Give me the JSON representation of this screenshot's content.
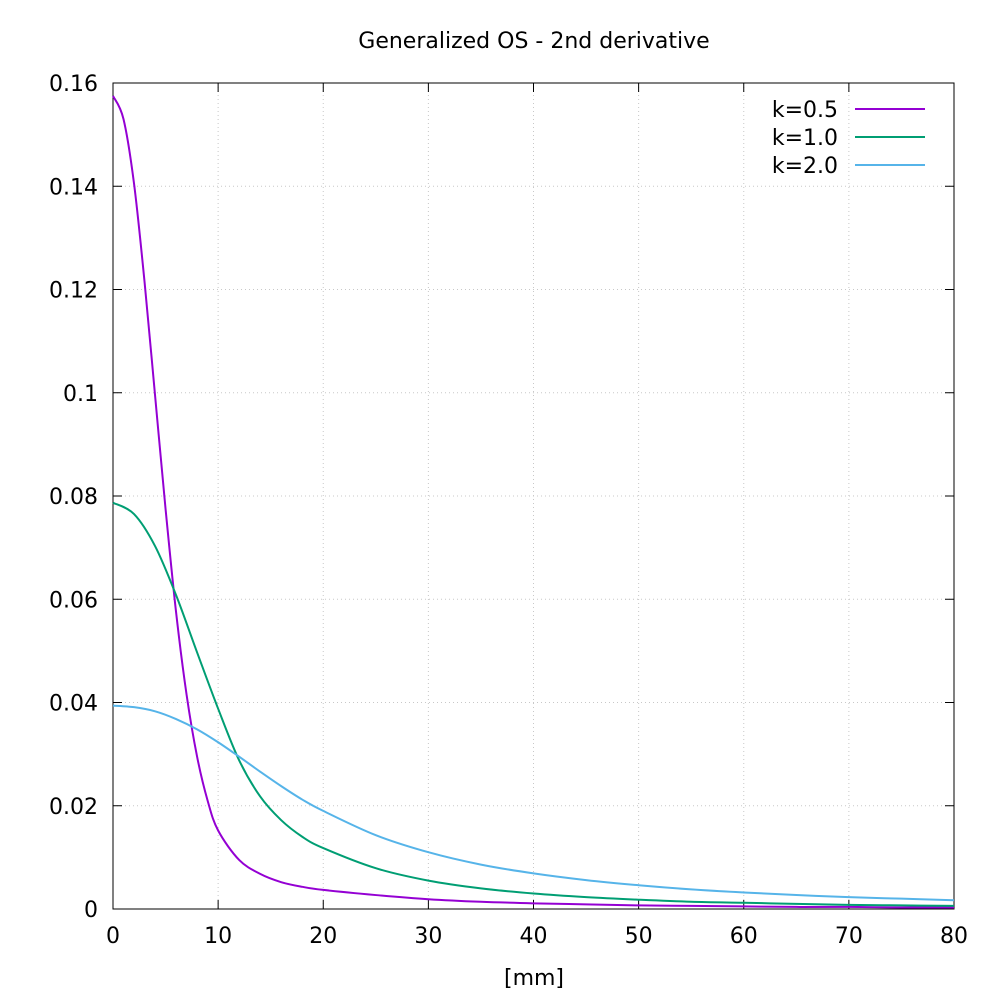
{
  "chart_data": {
    "type": "line",
    "title": "Generalized OS - 2nd derivative",
    "xlabel": "[mm]",
    "ylabel": "",
    "xlim": [
      0,
      80
    ],
    "ylim": [
      0,
      0.16
    ],
    "x_ticks": [
      0,
      10,
      20,
      30,
      40,
      50,
      60,
      70,
      80
    ],
    "x_tick_labels": [
      "0",
      "10",
      "20",
      "30",
      "40",
      "50",
      "60",
      "70",
      "80"
    ],
    "y_ticks": [
      0,
      0.02,
      0.04,
      0.06,
      0.08,
      0.1,
      0.12,
      0.14,
      0.16
    ],
    "y_tick_labels": [
      "0",
      "0.02",
      "0.04",
      "0.06",
      "0.08",
      "0.1",
      "0.12",
      "0.14",
      "0.16"
    ],
    "grid": true,
    "legend_position": "top-right",
    "series": [
      {
        "name": "k=0.5",
        "color": "#9400d3",
        "x": [
          0,
          1,
          2,
          3,
          4,
          5,
          6,
          7,
          8,
          9,
          10,
          12,
          14,
          16,
          18,
          20,
          25,
          30,
          35,
          40,
          45,
          50,
          55,
          60,
          65,
          70,
          75,
          80
        ],
        "y": [
          0.1575,
          0.153,
          0.1405,
          0.1215,
          0.0995,
          0.0775,
          0.0575,
          0.0415,
          0.0295,
          0.021,
          0.0152,
          0.0095,
          0.0068,
          0.0052,
          0.0043,
          0.0037,
          0.0027,
          0.0019,
          0.0014,
          0.0011,
          0.0009,
          0.0007,
          0.0006,
          0.0005,
          0.0004,
          0.0004,
          0.0003,
          0.0003
        ]
      },
      {
        "name": "k=1.0",
        "color": "#009e73",
        "x": [
          0,
          2,
          4,
          6,
          8,
          10,
          12,
          14,
          16,
          18,
          20,
          25,
          30,
          35,
          40,
          45,
          50,
          55,
          60,
          65,
          70,
          75,
          80
        ],
        "y": [
          0.0787,
          0.0765,
          0.0703,
          0.0608,
          0.0497,
          0.0388,
          0.0288,
          0.0218,
          0.0172,
          0.014,
          0.0118,
          0.0079,
          0.0055,
          0.004,
          0.003,
          0.0023,
          0.0018,
          0.0014,
          0.0012,
          0.001,
          0.0008,
          0.0007,
          0.0006
        ]
      },
      {
        "name": "k=2.0",
        "color": "#56b4e9",
        "x": [
          0,
          2,
          4,
          6,
          8,
          10,
          12,
          14,
          16,
          18,
          20,
          25,
          30,
          35,
          40,
          45,
          50,
          55,
          60,
          65,
          70,
          75,
          80
        ],
        "y": [
          0.0394,
          0.0391,
          0.0383,
          0.0368,
          0.0348,
          0.0323,
          0.0295,
          0.0266,
          0.0238,
          0.0212,
          0.019,
          0.0143,
          0.011,
          0.0086,
          0.0069,
          0.0056,
          0.0046,
          0.0038,
          0.0032,
          0.0027,
          0.0023,
          0.002,
          0.0017
        ]
      }
    ]
  }
}
